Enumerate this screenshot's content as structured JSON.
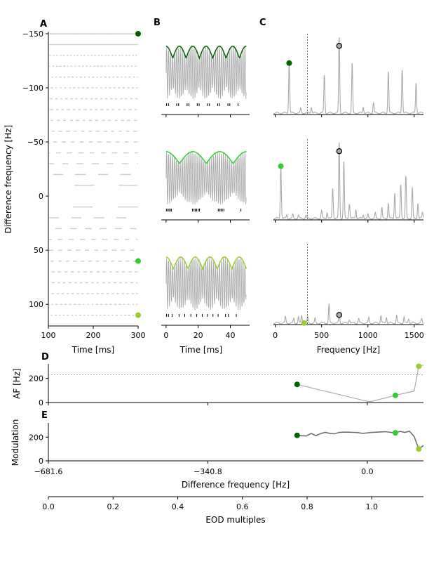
{
  "colors": {
    "dark_green": "#006400",
    "mid_green": "#32cd32",
    "yellow_green": "#9acd32",
    "gray": "#a9a9a9",
    "light_gray": "#c8c8c8",
    "dark_gray": "#707070"
  },
  "panel_labels": {
    "a": "A",
    "b": "B",
    "c": "C",
    "d": "D",
    "e": "E"
  },
  "chart_data": [
    {
      "id": "A",
      "type": "scatter",
      "title": "",
      "xlabel": "Time [ms]",
      "ylabel": "Difference frequency [Hz]",
      "xlim": [
        100,
        300
      ],
      "ylim": [
        120,
        -150
      ],
      "xticks": [
        100,
        200,
        300
      ],
      "xtick_labels": [
        "100",
        "200",
        "300"
      ],
      "yticks": [
        -150,
        -100,
        -50,
        0,
        50,
        100
      ],
      "ytick_labels": [
        "−150",
        "−100",
        "−50",
        "0",
        "50",
        "100"
      ],
      "rows_df": [
        -150,
        -140,
        -130,
        -120,
        -110,
        -100,
        -90,
        -80,
        -70,
        -60,
        -50,
        -40,
        -30,
        -20,
        -10,
        10,
        20,
        30,
        40,
        50,
        60,
        70,
        80,
        90,
        100,
        110
      ],
      "markers": [
        {
          "df": -150,
          "t": 305,
          "color": "#006400"
        },
        {
          "df": 60,
          "t": 305,
          "color": "#32cd32"
        },
        {
          "df": 110,
          "t": 305,
          "color": "#9acd32"
        }
      ]
    },
    {
      "id": "B",
      "type": "line",
      "xlabel": "Time [ms]",
      "xlim": [
        -3,
        52
      ],
      "xticks": [
        0,
        20,
        40
      ],
      "xtick_labels": [
        "0",
        "20",
        "40"
      ],
      "rows": [
        {
          "envelope_color": "#006400",
          "beat_period_ms": 8.3,
          "spike_times": [
            0.3,
            1.5,
            6.6,
            7.8,
            13.1,
            14.2,
            19.4,
            20.6,
            25.8,
            27.0,
            32.1,
            33.3,
            38.5,
            39.7,
            44.8
          ]
        },
        {
          "envelope_color": "#32cd32",
          "beat_period_ms": 16.7,
          "spike_times": [
            0.2,
            1.0,
            1.8,
            2.6,
            3.3,
            16.4,
            17.4,
            18.2,
            19.0,
            20.0,
            20.8,
            32.5,
            33.4,
            34.2,
            35.0,
            36.0,
            46.6
          ]
        },
        {
          "envelope_color": "#9acd32",
          "beat_period_ms": 9.1,
          "spike_times": [
            0.3,
            1.5,
            3.8,
            8.1,
            11.6,
            15.4,
            19.0,
            22.5,
            25.8,
            29.2,
            32.4,
            37.0,
            38.8,
            43.7
          ]
        }
      ]
    },
    {
      "id": "C",
      "type": "line",
      "xlabel": "Frequency [Hz]",
      "xlim": [
        -20,
        1600
      ],
      "xticks": [
        0,
        500,
        1000,
        1500
      ],
      "xtick_labels": [
        "0",
        "500",
        "1000",
        "1500"
      ],
      "vline_hz": 347,
      "rows": [
        {
          "marker_hz": 150,
          "marker_color": "#006400",
          "eod_hz": 690,
          "peaks": [
            [
              150,
              0.65
            ],
            [
              275,
              0.06
            ],
            [
              390,
              0.08
            ],
            [
              530,
              0.5
            ],
            [
              690,
              1.0
            ],
            [
              830,
              0.65
            ],
            [
              950,
              0.08
            ],
            [
              1060,
              0.14
            ],
            [
              1220,
              0.55
            ],
            [
              1370,
              0.58
            ],
            [
              1520,
              0.4
            ]
          ]
        },
        {
          "marker_hz": 60,
          "marker_color": "#32cd32",
          "eod_hz": 690,
          "peaks": [
            [
              60,
              0.68
            ],
            [
              125,
              0.05
            ],
            [
              190,
              0.05
            ],
            [
              250,
              0.04
            ],
            [
              330,
              0.04
            ],
            [
              500,
              0.1
            ],
            [
              560,
              0.08
            ],
            [
              620,
              0.4
            ],
            [
              690,
              1.0
            ],
            [
              740,
              0.75
            ],
            [
              800,
              0.2
            ],
            [
              870,
              0.12
            ],
            [
              950,
              0.05
            ],
            [
              1000,
              0.05
            ],
            [
              1080,
              0.07
            ],
            [
              1150,
              0.14
            ],
            [
              1220,
              0.2
            ],
            [
              1290,
              0.34
            ],
            [
              1355,
              0.45
            ],
            [
              1410,
              0.55
            ],
            [
              1480,
              0.4
            ],
            [
              1540,
              0.2
            ],
            [
              1590,
              0.08
            ]
          ]
        },
        {
          "marker_hz": 310,
          "marker_color": "#9acd32",
          "eod_hz": 690,
          "peaks": [
            [
              110,
              0.08
            ],
            [
              200,
              0.06
            ],
            [
              250,
              0.08
            ],
            [
              285,
              0.1
            ],
            [
              350,
              0.08
            ],
            [
              430,
              0.06
            ],
            [
              580,
              0.25
            ],
            [
              690,
              0.12
            ],
            [
              800,
              0.05
            ],
            [
              900,
              0.06
            ],
            [
              1010,
              0.07
            ],
            [
              1140,
              0.1
            ],
            [
              1200,
              0.08
            ],
            [
              1310,
              0.1
            ],
            [
              1390,
              0.08
            ],
            [
              1440,
              0.06
            ],
            [
              1580,
              0.05
            ]
          ]
        }
      ]
    },
    {
      "id": "D",
      "type": "line",
      "ylabel": "AF [Hz]",
      "ylim": [
        0,
        320
      ],
      "yticks": [
        0,
        200
      ],
      "ytick_labels": [
        "0",
        "200"
      ],
      "hline": 230,
      "x": [
        -150,
        -100,
        -50,
        0,
        10,
        60,
        100,
        110,
        120
      ],
      "y": [
        150,
        103,
        57,
        10,
        10,
        60,
        95,
        300,
        310
      ],
      "markers": [
        {
          "x": -150,
          "y": 150,
          "color": "#006400"
        },
        {
          "x": 60,
          "y": 60,
          "color": "#32cd32"
        },
        {
          "x": 110,
          "y": 300,
          "color": "#9acd32"
        }
      ]
    },
    {
      "id": "E",
      "type": "line",
      "xlabel": "Difference frequency [Hz]",
      "ylabel": "Modulation",
      "ylim": [
        0,
        320
      ],
      "yticks": [
        0,
        200
      ],
      "ytick_labels": [
        "0",
        "200"
      ],
      "xlim": [
        -681.6,
        120
      ],
      "xticks": [
        -681.6,
        -340.8,
        0.0
      ],
      "xtick_labels": [
        "−681.6",
        "−340.8",
        "0.0"
      ],
      "x": [
        -150,
        -140,
        -130,
        -120,
        -110,
        -100,
        -90,
        -80,
        -70,
        -60,
        -50,
        -40,
        -30,
        -20,
        -10,
        0,
        10,
        20,
        30,
        40,
        50,
        60,
        70,
        80,
        90,
        100,
        110,
        120
      ],
      "y": [
        215,
        212,
        210,
        232,
        212,
        230,
        240,
        232,
        228,
        240,
        242,
        242,
        240,
        238,
        232,
        236,
        240,
        242,
        244,
        246,
        240,
        236,
        248,
        240,
        250,
        205,
        100,
        130
      ],
      "markers": [
        {
          "x": -150,
          "y": 215,
          "color": "#006400"
        },
        {
          "x": 60,
          "y": 236,
          "color": "#32cd32"
        },
        {
          "x": 110,
          "y": 100,
          "color": "#9acd32"
        }
      ],
      "secondary_x": {
        "label": "EOD multiples",
        "lim": [
          0,
          1.16
        ],
        "ticks": [
          0.0,
          0.2,
          0.4,
          0.6,
          0.8,
          1.0
        ],
        "tick_labels": [
          "0.0",
          "0.2",
          "0.4",
          "0.6",
          "0.8",
          "1.0"
        ]
      }
    }
  ]
}
